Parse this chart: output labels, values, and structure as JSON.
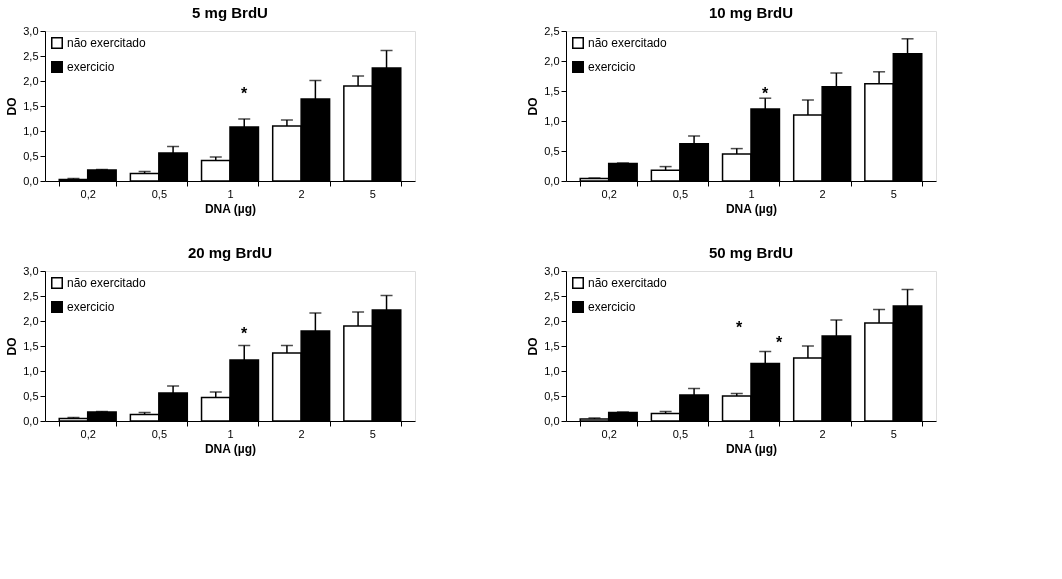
{
  "chart_data": [
    {
      "type": "bar",
      "title": "5 mg BrdU",
      "xlabel": "DNA (µg)",
      "ylabel": "DO",
      "categories": [
        "0,2",
        "0,5",
        "1",
        "2",
        "5"
      ],
      "ylim": [
        0,
        3
      ],
      "yticks": [
        {
          "value": 0,
          "label": "0,0"
        },
        {
          "value": 0.5,
          "label": "0,5"
        },
        {
          "value": 1,
          "label": "1,0"
        },
        {
          "value": 1.5,
          "label": "1,5"
        },
        {
          "value": 2,
          "label": "2,0"
        },
        {
          "value": 2.5,
          "label": "2,5"
        },
        {
          "value": 3,
          "label": "3,0"
        }
      ],
      "grid": false,
      "legend": "top left",
      "series": [
        {
          "name": "não exercitado",
          "color": "#ffffff",
          "values": [
            0.03,
            0.15,
            0.41,
            1.1,
            1.9
          ],
          "errors": [
            0.02,
            0.04,
            0.07,
            0.12,
            0.2
          ]
        },
        {
          "name": "exercicio",
          "color": "#000000",
          "values": [
            0.22,
            0.56,
            1.08,
            1.64,
            2.26
          ],
          "errors": [
            0.01,
            0.13,
            0.16,
            0.37,
            0.35
          ]
        }
      ],
      "annotations": [
        "*"
      ]
    },
    {
      "type": "bar",
      "title": "10 mg BrdU",
      "xlabel": "DNA (µg)",
      "ylabel": "DO",
      "categories": [
        "0,2",
        "0,5",
        "1",
        "2",
        "5"
      ],
      "ylim": [
        0,
        2.5
      ],
      "yticks": [
        {
          "value": 0,
          "label": "0,0"
        },
        {
          "value": 0.5,
          "label": "0,5"
        },
        {
          "value": 1,
          "label": "1,0"
        },
        {
          "value": 1.5,
          "label": "1,5"
        },
        {
          "value": 2,
          "label": "2,0"
        },
        {
          "value": 2.5,
          "label": "2,5"
        }
      ],
      "grid": false,
      "legend": "top left",
      "series": [
        {
          "name": "não exercitado",
          "color": "#ffffff",
          "values": [
            0.04,
            0.18,
            0.45,
            1.1,
            1.62
          ],
          "errors": [
            0.01,
            0.06,
            0.09,
            0.25,
            0.2
          ]
        },
        {
          "name": "exercicio",
          "color": "#000000",
          "values": [
            0.29,
            0.62,
            1.2,
            1.57,
            2.12
          ],
          "errors": [
            0.01,
            0.13,
            0.18,
            0.23,
            0.25
          ]
        }
      ],
      "annotations": [
        "*"
      ]
    },
    {
      "type": "bar",
      "title": "20 mg BrdU",
      "xlabel": "DNA (µg)",
      "ylabel": "DO",
      "categories": [
        "0,2",
        "0,5",
        "1",
        "2",
        "5"
      ],
      "ylim": [
        0,
        3
      ],
      "yticks": [
        {
          "value": 0,
          "label": "0,0"
        },
        {
          "value": 0.5,
          "label": "0,5"
        },
        {
          "value": 1,
          "label": "1,0"
        },
        {
          "value": 1.5,
          "label": "1,5"
        },
        {
          "value": 2,
          "label": "2,0"
        },
        {
          "value": 2.5,
          "label": "2,5"
        },
        {
          "value": 3,
          "label": "3,0"
        }
      ],
      "grid": false,
      "legend": "top left",
      "series": [
        {
          "name": "não exercitado",
          "color": "#ffffff",
          "values": [
            0.05,
            0.13,
            0.47,
            1.36,
            1.9
          ],
          "errors": [
            0.02,
            0.04,
            0.11,
            0.15,
            0.28
          ]
        },
        {
          "name": "exercicio",
          "color": "#000000",
          "values": [
            0.18,
            0.56,
            1.22,
            1.8,
            2.22
          ],
          "errors": [
            0.01,
            0.14,
            0.29,
            0.36,
            0.29
          ]
        }
      ],
      "annotations": [
        "*"
      ]
    },
    {
      "type": "bar",
      "title": "50 mg BrdU",
      "xlabel": "DNA (µg)",
      "ylabel": "DO",
      "categories": [
        "0,2",
        "0,5",
        "1",
        "2",
        "5"
      ],
      "ylim": [
        0,
        3
      ],
      "yticks": [
        {
          "value": 0,
          "label": "0,0"
        },
        {
          "value": 0.5,
          "label": "0,5"
        },
        {
          "value": 1,
          "label": "1,0"
        },
        {
          "value": 1.5,
          "label": "1,5"
        },
        {
          "value": 2,
          "label": "2,0"
        },
        {
          "value": 2.5,
          "label": "2,5"
        },
        {
          "value": 3,
          "label": "3,0"
        }
      ],
      "grid": false,
      "legend": "top left",
      "series": [
        {
          "name": "não exercitado",
          "color": "#ffffff",
          "values": [
            0.04,
            0.15,
            0.5,
            1.26,
            1.96
          ],
          "errors": [
            0.02,
            0.04,
            0.05,
            0.24,
            0.27
          ]
        },
        {
          "name": "exercicio",
          "color": "#000000",
          "values": [
            0.17,
            0.52,
            1.15,
            1.7,
            2.3
          ],
          "errors": [
            0.01,
            0.13,
            0.24,
            0.32,
            0.33
          ]
        }
      ],
      "annotations": [
        "*",
        "*"
      ]
    }
  ]
}
